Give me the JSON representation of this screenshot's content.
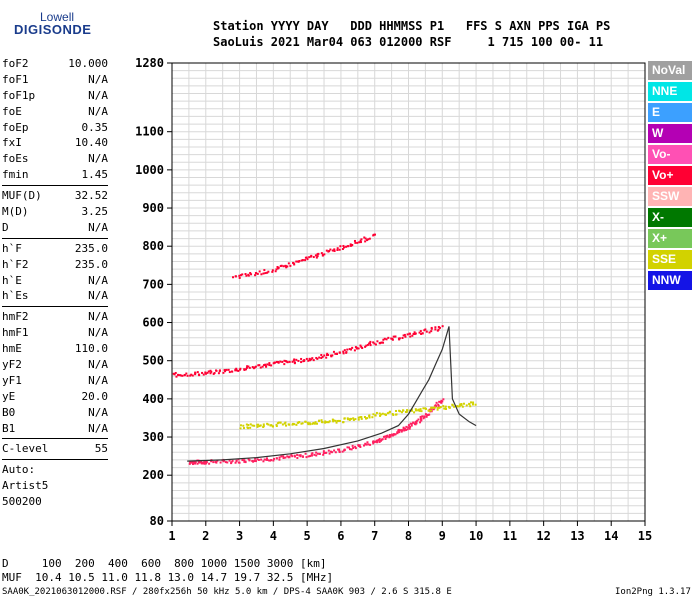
{
  "logo": {
    "line1": "Lowell",
    "line2": "DIGISONDE"
  },
  "header": {
    "line1": "Station YYYY DAY   DDD HHMMSS P1   FFS S AXN PPS IGA PS",
    "line2": "SaoLuis 2021 Mar04 063 012000 RSF     1 715 100 00- 11"
  },
  "params_group1": [
    {
      "name": "foF2",
      "value": "10.000"
    },
    {
      "name": "foF1",
      "value": "N/A"
    },
    {
      "name": "foF1p",
      "value": "N/A"
    },
    {
      "name": "foE",
      "value": "N/A"
    },
    {
      "name": "foEp",
      "value": "0.35"
    },
    {
      "name": "fxI",
      "value": "10.40"
    },
    {
      "name": "foEs",
      "value": "N/A"
    },
    {
      "name": "fmin",
      "value": "1.45"
    }
  ],
  "params_group2": [
    {
      "name": "MUF(D)",
      "value": "32.52"
    },
    {
      "name": "M(D)",
      "value": "3.25"
    },
    {
      "name": "D",
      "value": "N/A"
    }
  ],
  "params_group3": [
    {
      "name": "h`F",
      "value": "235.0"
    },
    {
      "name": "h`F2",
      "value": "235.0"
    },
    {
      "name": "h`E",
      "value": "N/A"
    },
    {
      "name": "h`Es",
      "value": "N/A"
    }
  ],
  "params_group4": [
    {
      "name": "hmF2",
      "value": "N/A"
    },
    {
      "name": "hmF1",
      "value": "N/A"
    },
    {
      "name": "hmE",
      "value": "110.0"
    },
    {
      "name": "yF2",
      "value": "N/A"
    },
    {
      "name": "yF1",
      "value": "N/A"
    },
    {
      "name": "yE",
      "value": "20.0"
    },
    {
      "name": "B0",
      "value": "N/A"
    },
    {
      "name": "B1",
      "value": "N/A"
    }
  ],
  "params_group5": [
    {
      "name": "C-level",
      "value": "55"
    }
  ],
  "auto": {
    "line1": "Auto:",
    "line2": "Artist5",
    "line3": "500200"
  },
  "legend": [
    {
      "label": "NoVal",
      "color": "#a0a0a0"
    },
    {
      "label": "NNE",
      "color": "#00e6e6"
    },
    {
      "label": "E",
      "color": "#3ca0ff"
    },
    {
      "label": "W",
      "color": "#b400b4"
    },
    {
      "label": "Vo-",
      "color": "#ff50b4"
    },
    {
      "label": "Vo+",
      "color": "#ff0033"
    },
    {
      "label": "SSW",
      "color": "#ffb4b4"
    },
    {
      "label": "X-",
      "color": "#007800"
    },
    {
      "label": "X+",
      "color": "#78c85a"
    },
    {
      "label": "SSE",
      "color": "#d2d200"
    },
    {
      "label": "NNW",
      "color": "#1414e6"
    }
  ],
  "bottom": {
    "d_line": "D     100  200  400  600  800 1000 1500 3000 [km]",
    "muf_line": "MUF  10.4 10.5 11.0 11.8 13.0 14.7 19.7 32.5 [MHz]",
    "footer_left": "SAA0K_2021063012000.RSF / 280fx256h 50 kHz 5.0 km / DPS-4 SAA0K 903 / 2.6 S 315.8 E",
    "footer_right": "Ion2Png 1.3.17"
  },
  "chart_data": {
    "type": "scatter",
    "xlim": [
      1,
      15
    ],
    "ylim": [
      80,
      1280
    ],
    "x_ticks": [
      1,
      2,
      3,
      4,
      5,
      6,
      7,
      8,
      9,
      10,
      11,
      12,
      13,
      14,
      15
    ],
    "y_ticks": [
      80,
      200,
      300,
      400,
      500,
      600,
      700,
      800,
      900,
      1000,
      1100,
      1280
    ],
    "x_tick_labels": [
      "1",
      "2",
      "3",
      "4",
      "5",
      "6",
      "7",
      "8",
      "9",
      "10",
      "11",
      "12",
      "13",
      "14",
      "15"
    ],
    "y_tick_labels": [
      "80",
      "200",
      "300",
      "400",
      "500",
      "600",
      "700",
      "800",
      "900",
      "1000",
      "1100",
      "1280"
    ],
    "grid": true,
    "profile_line": {
      "x": [
        1.45,
        2.5,
        3.5,
        4.5,
        5.5,
        6.5,
        7.2,
        7.7,
        8.0,
        8.2,
        8.4,
        8.6,
        8.8,
        9.0,
        9.1,
        9.2,
        9.3,
        9.5,
        9.8,
        10.0
      ],
      "y": [
        237,
        240,
        246,
        256,
        270,
        290,
        310,
        330,
        360,
        390,
        420,
        450,
        490,
        530,
        560,
        590,
        400,
        360,
        340,
        330
      ]
    },
    "traces": [
      {
        "name": "F-trace 1st hop",
        "color": "#ff2060",
        "x": [
          1.5,
          2.0,
          3.0,
          4.0,
          5.0,
          6.0,
          7.0,
          7.5,
          8.0,
          8.5,
          9.0
        ],
        "y": [
          236,
          237,
          240,
          246,
          255,
          268,
          290,
          310,
          330,
          360,
          400
        ]
      },
      {
        "name": "F-trace 2nd hop",
        "color": "#ff0033",
        "x": [
          1.0,
          2.0,
          3.0,
          4.0,
          5.0,
          6.0,
          7.0,
          8.0,
          9.0
        ],
        "y": [
          465,
          470,
          480,
          495,
          505,
          525,
          550,
          570,
          590
        ]
      },
      {
        "name": "F-trace 3rd hop",
        "color": "#ff0033",
        "x": [
          2.8,
          4.0,
          5.0,
          6.0,
          7.0
        ],
        "y": [
          720,
          740,
          770,
          800,
          830
        ]
      },
      {
        "name": "sporadic-sse",
        "color": "#d2d200",
        "x": [
          3.0,
          4.0,
          5.0,
          6.0,
          7.0,
          8.0,
          9.0,
          10.0
        ],
        "y": [
          330,
          335,
          340,
          345,
          360,
          370,
          380,
          390
        ]
      }
    ]
  }
}
